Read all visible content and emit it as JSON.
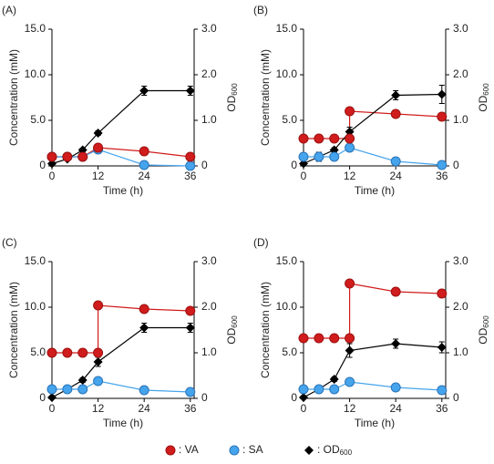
{
  "legend": [
    {
      "name": ": VA",
      "color": "#d01c1c",
      "marker": "circle"
    },
    {
      "name": ": SA",
      "color": "#45a4ec",
      "marker": "circle"
    },
    {
      "name": ": OD600",
      "color": "#000000",
      "marker": "diamond"
    }
  ],
  "chart_data": [
    {
      "type": "line",
      "panel_label": "(A)",
      "ylabel": "Concentration (mM)",
      "xlabel": "Time (h)",
      "y2label": "OD600",
      "xlim": [
        0,
        37
      ],
      "xticks": [
        0,
        12,
        24,
        36
      ],
      "ylim": [
        0,
        15
      ],
      "yticks": [
        0,
        {
          "value": 5,
          "label": "5.0"
        },
        {
          "value": 10,
          "label": "10.0"
        },
        {
          "value": 15,
          "label": "15.0"
        }
      ],
      "y2lim": [
        0,
        3
      ],
      "y2ticks": [
        0,
        {
          "value": 1,
          "label": "1.0"
        },
        {
          "value": 2,
          "label": "2.0"
        },
        {
          "value": 3,
          "label": "3.0"
        }
      ],
      "series": [
        {
          "color": "#d01c1c",
          "marker": "circle",
          "x": [
            0,
            4,
            8,
            12,
            24,
            36
          ],
          "values": [
            1.0,
            1.0,
            1.0,
            2.0,
            1.6,
            1.0
          ]
        },
        {
          "color": "#45a4ec",
          "marker": "circle",
          "x": [
            0,
            4,
            8,
            12,
            24,
            36
          ],
          "values": [
            1.0,
            1.0,
            1.0,
            1.8,
            0.1,
            0.0
          ]
        },
        {
          "color": "#000000",
          "marker": "diamond",
          "axis": "y2",
          "x": [
            0,
            4,
            8,
            12,
            24,
            36
          ],
          "values": [
            0.05,
            0.15,
            0.35,
            0.72,
            1.65,
            1.65
          ],
          "errors": [
            0.02,
            0.03,
            0.04,
            0.05,
            0.1,
            0.1
          ]
        }
      ]
    },
    {
      "type": "line",
      "panel_label": "(B)",
      "ylabel": "Concentration (mM)",
      "xlabel": "Time (h)",
      "y2label": "OD600",
      "xlim": [
        0,
        37
      ],
      "xticks": [
        0,
        12,
        24,
        36
      ],
      "ylim": [
        0,
        15
      ],
      "yticks": [
        0,
        {
          "value": 5,
          "label": "5.0"
        },
        {
          "value": 10,
          "label": "10.0"
        },
        {
          "value": 15,
          "label": "15.0"
        }
      ],
      "y2lim": [
        0,
        3
      ],
      "y2ticks": [
        0,
        {
          "value": 1,
          "label": "1.0"
        },
        {
          "value": 2,
          "label": "2.0"
        },
        {
          "value": 3,
          "label": "3.0"
        }
      ],
      "series": [
        {
          "color": "#d01c1c",
          "marker": "circle",
          "x": [
            0,
            4,
            8,
            12,
            12,
            24,
            36
          ],
          "values": [
            3.0,
            3.0,
            3.0,
            3.0,
            6.0,
            5.7,
            5.4
          ]
        },
        {
          "color": "#45a4ec",
          "marker": "circle",
          "x": [
            0,
            4,
            8,
            12,
            24,
            36
          ],
          "values": [
            1.0,
            1.0,
            1.0,
            2.0,
            0.5,
            0.1
          ]
        },
        {
          "color": "#000000",
          "marker": "diamond",
          "axis": "y2",
          "x": [
            0,
            4,
            8,
            12,
            24,
            36
          ],
          "values": [
            0.05,
            0.2,
            0.35,
            0.75,
            1.55,
            1.57
          ],
          "errors": [
            0.02,
            0.1,
            0.05,
            0.1,
            0.1,
            0.2
          ]
        }
      ]
    },
    {
      "type": "line",
      "panel_label": "(C)",
      "ylabel": "Concentration (mM)",
      "xlabel": "Time (h)",
      "y2label": "OD600",
      "xlim": [
        0,
        37
      ],
      "xticks": [
        0,
        12,
        24,
        36
      ],
      "ylim": [
        0,
        15
      ],
      "yticks": [
        0,
        {
          "value": 5,
          "label": "5.0"
        },
        {
          "value": 10,
          "label": "10.0"
        },
        {
          "value": 15,
          "label": "15.0"
        }
      ],
      "y2lim": [
        0,
        3
      ],
      "y2ticks": [
        0,
        {
          "value": 1,
          "label": "1.0"
        },
        {
          "value": 2,
          "label": "2.0"
        },
        {
          "value": 3,
          "label": "3.0"
        }
      ],
      "series": [
        {
          "color": "#d01c1c",
          "marker": "circle",
          "x": [
            0,
            4,
            8,
            12,
            12,
            24,
            36
          ],
          "values": [
            5.0,
            5.0,
            5.0,
            5.0,
            10.2,
            9.8,
            9.6
          ]
        },
        {
          "color": "#45a4ec",
          "marker": "circle",
          "x": [
            0,
            4,
            8,
            12,
            24,
            36
          ],
          "values": [
            1.0,
            1.0,
            1.0,
            1.9,
            0.9,
            0.7
          ]
        },
        {
          "color": "#000000",
          "marker": "diamond",
          "axis": "y2",
          "x": [
            0,
            4,
            8,
            12,
            24,
            36
          ],
          "values": [
            0.02,
            0.2,
            0.4,
            0.8,
            1.55,
            1.55
          ],
          "errors": [
            0.02,
            0.03,
            0.05,
            0.1,
            0.1,
            0.1
          ]
        }
      ]
    },
    {
      "type": "line",
      "panel_label": "(D)",
      "ylabel": "Concentration (mM)",
      "xlabel": "Time (h)",
      "y2label": "OD600",
      "xlim": [
        0,
        37
      ],
      "xticks": [
        0,
        12,
        24,
        36
      ],
      "ylim": [
        0,
        15
      ],
      "yticks": [
        0,
        {
          "value": 5,
          "label": "5.0"
        },
        {
          "value": 10,
          "label": "10.0"
        },
        {
          "value": 15,
          "label": "15.0"
        }
      ],
      "y2lim": [
        0,
        3
      ],
      "y2ticks": [
        0,
        {
          "value": 1,
          "label": "1.0"
        },
        {
          "value": 2,
          "label": "2.0"
        },
        {
          "value": 3,
          "label": "3.0"
        }
      ],
      "series": [
        {
          "color": "#d01c1c",
          "marker": "circle",
          "x": [
            0,
            4,
            8,
            12,
            12,
            24,
            36
          ],
          "values": [
            6.6,
            6.6,
            6.6,
            6.6,
            12.6,
            11.7,
            11.5
          ]
        },
        {
          "color": "#45a4ec",
          "marker": "circle",
          "x": [
            0,
            4,
            8,
            12,
            24,
            36
          ],
          "values": [
            1.0,
            1.0,
            1.0,
            1.8,
            1.2,
            0.9
          ]
        },
        {
          "color": "#000000",
          "marker": "diamond",
          "axis": "y2",
          "x": [
            0,
            4,
            8,
            12,
            24,
            36
          ],
          "values": [
            0.02,
            0.2,
            0.42,
            1.05,
            1.2,
            1.12
          ],
          "errors": [
            0.02,
            0.03,
            0.05,
            0.15,
            0.1,
            0.12
          ]
        }
      ]
    }
  ]
}
